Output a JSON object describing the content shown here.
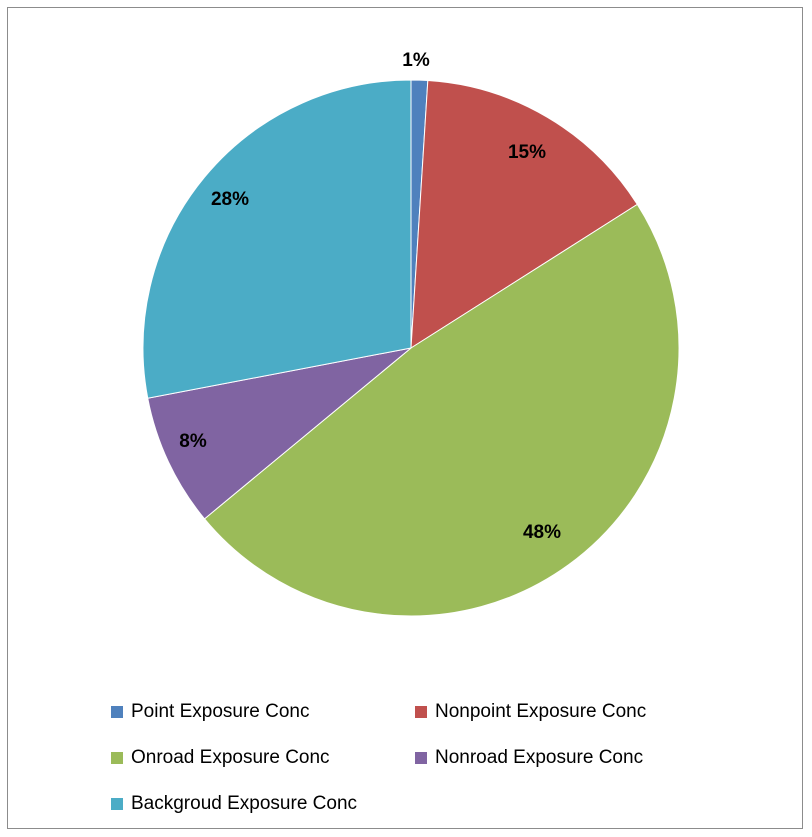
{
  "chart_data": {
    "type": "pie",
    "title": "",
    "legend_position": "bottom",
    "slices": [
      {
        "name": "Point Exposure Conc",
        "value": 1,
        "label": "1%",
        "color": "#4f81bd"
      },
      {
        "name": "Nonpoint Exposure Conc",
        "value": 15,
        "label": "15%",
        "color": "#c0504d"
      },
      {
        "name": "Onroad Exposure Conc",
        "value": 48,
        "label": "48%",
        "color": "#9bbb59"
      },
      {
        "name": "Nonroad Exposure Conc",
        "value": 8,
        "label": "8%",
        "color": "#8064a2"
      },
      {
        "name": "Backgroud Exposure Conc",
        "value": 28,
        "label": "28%",
        "color": "#4bacc6"
      }
    ]
  }
}
